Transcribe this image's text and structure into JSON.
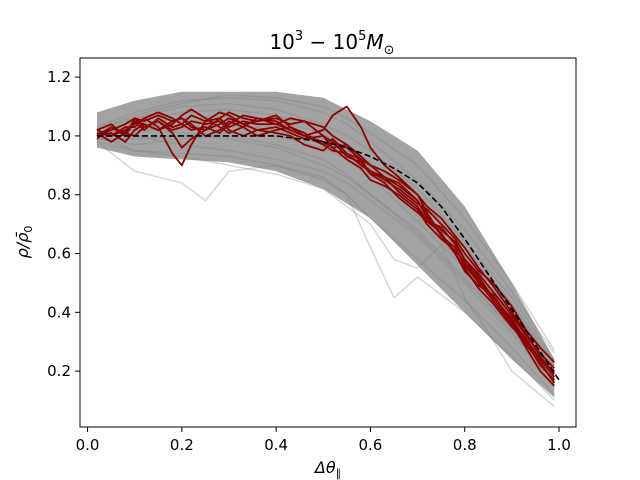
{
  "chart_data": {
    "type": "line",
    "title": "10^3 - 10^5 M_⊙",
    "title_parts": {
      "base1": "10",
      "exp1": "3",
      "minus": " − ",
      "base2": "10",
      "exp2": "5",
      "sym": "M",
      "sub": "⊙"
    },
    "xlabel": "Δθ",
    "xlabel_sub": "∥",
    "ylabel": "ρ/ρ̄",
    "ylabel_sub": "0",
    "xlim": [
      -0.016,
      1.036
    ],
    "ylim": [
      0.01,
      1.265
    ],
    "xticks": [
      0.0,
      0.2,
      0.4,
      0.6,
      0.8,
      1.0
    ],
    "xtick_labels": [
      "0.0",
      "0.2",
      "0.4",
      "0.6",
      "0.8",
      "1.0"
    ],
    "yticks": [
      0.2,
      0.4,
      0.6,
      0.8,
      1.0,
      1.2
    ],
    "ytick_labels": [
      "0.2",
      "0.4",
      "0.6",
      "0.8",
      "1.0",
      "1.2"
    ],
    "grid": false,
    "colors": {
      "background_band": "#808080",
      "highlight": "#8b0000",
      "mean": "#000000"
    },
    "mean_curve": {
      "name": "mean profile",
      "style": "dashed",
      "x": [
        0.02,
        0.1,
        0.2,
        0.3,
        0.4,
        0.45,
        0.5,
        0.55,
        0.6,
        0.65,
        0.7,
        0.75,
        0.8,
        0.85,
        0.9,
        0.95,
        1.0
      ],
      "y": [
        1.0,
        1.0,
        1.0,
        1.0,
        1.0,
        0.99,
        0.98,
        0.96,
        0.93,
        0.89,
        0.84,
        0.76,
        0.65,
        0.53,
        0.41,
        0.29,
        0.17
      ]
    },
    "background_band": {
      "name": "all profiles (grey)",
      "x": [
        0.02,
        0.1,
        0.2,
        0.3,
        0.4,
        0.5,
        0.6,
        0.7,
        0.8,
        0.9,
        0.99
      ],
      "y_low": [
        0.96,
        0.93,
        0.92,
        0.91,
        0.88,
        0.82,
        0.72,
        0.56,
        0.4,
        0.24,
        0.11
      ],
      "y_high": [
        1.08,
        1.12,
        1.15,
        1.15,
        1.15,
        1.13,
        1.05,
        0.95,
        0.76,
        0.5,
        0.24
      ]
    },
    "background_series": [
      {
        "name": "gray-01",
        "x": [
          0.02,
          0.1,
          0.2,
          0.3,
          0.4,
          0.5,
          0.55,
          0.6,
          0.7,
          0.8,
          0.9,
          0.99
        ],
        "y": [
          1.01,
          1.05,
          1.08,
          1.09,
          1.07,
          1.02,
          0.97,
          0.9,
          0.76,
          0.6,
          0.42,
          0.22
        ]
      },
      {
        "name": "gray-02",
        "x": [
          0.02,
          0.1,
          0.2,
          0.3,
          0.4,
          0.5,
          0.55,
          0.6,
          0.7,
          0.8,
          0.9,
          0.99
        ],
        "y": [
          0.99,
          0.97,
          0.99,
          1.0,
          0.97,
          0.92,
          0.87,
          0.8,
          0.68,
          0.52,
          0.34,
          0.16
        ]
      },
      {
        "name": "gray-03",
        "x": [
          0.02,
          0.1,
          0.2,
          0.3,
          0.4,
          0.5,
          0.55,
          0.6,
          0.7,
          0.8,
          0.9,
          0.99
        ],
        "y": [
          1.03,
          1.08,
          1.12,
          1.13,
          1.12,
          1.08,
          1.04,
          0.98,
          0.85,
          0.68,
          0.47,
          0.26
        ]
      },
      {
        "name": "gray-04",
        "x": [
          0.02,
          0.1,
          0.2,
          0.3,
          0.4,
          0.5,
          0.55,
          0.6,
          0.7,
          0.8,
          0.9,
          0.99
        ],
        "y": [
          1.0,
          1.02,
          1.03,
          1.04,
          1.02,
          0.98,
          0.94,
          0.88,
          0.73,
          0.56,
          0.38,
          0.19
        ]
      },
      {
        "name": "gray-05",
        "x": [
          0.02,
          0.1,
          0.2,
          0.3,
          0.4,
          0.5,
          0.55,
          0.6,
          0.7,
          0.8,
          0.9,
          0.99
        ],
        "y": [
          0.98,
          0.95,
          0.94,
          0.93,
          0.9,
          0.85,
          0.8,
          0.72,
          0.58,
          0.44,
          0.28,
          0.12
        ]
      },
      {
        "name": "gray-06",
        "x": [
          0.02,
          0.1,
          0.2,
          0.3,
          0.4,
          0.5,
          0.55,
          0.6,
          0.7,
          0.8,
          0.9,
          0.99
        ],
        "y": [
          1.02,
          1.06,
          1.1,
          1.11,
          1.09,
          1.04,
          1.0,
          0.95,
          0.82,
          0.64,
          0.45,
          0.24
        ]
      },
      {
        "name": "gray-07",
        "x": [
          0.02,
          0.1,
          0.2,
          0.3,
          0.4,
          0.5,
          0.55,
          0.6,
          0.7,
          0.8,
          0.9,
          0.99
        ],
        "y": [
          1.0,
          1.0,
          0.97,
          0.95,
          0.92,
          0.88,
          0.84,
          0.78,
          0.66,
          0.5,
          0.33,
          0.15
        ]
      },
      {
        "name": "gray-08",
        "x": [
          0.02,
          0.1,
          0.2,
          0.3,
          0.4,
          0.5,
          0.55,
          0.6,
          0.7,
          0.8,
          0.9,
          0.99
        ],
        "y": [
          1.01,
          1.04,
          1.06,
          1.07,
          1.05,
          1.01,
          0.96,
          0.89,
          0.75,
          0.58,
          0.4,
          0.21
        ]
      },
      {
        "name": "gray-09",
        "x": [
          0.02,
          0.1,
          0.2,
          0.3,
          0.4,
          0.5,
          0.55,
          0.6,
          0.7,
          0.8,
          0.9,
          0.99
        ],
        "y": [
          1.02,
          1.07,
          1.11,
          1.14,
          1.13,
          1.1,
          1.06,
          1.01,
          0.9,
          0.72,
          0.5,
          0.27
        ]
      },
      {
        "name": "gray-10",
        "x": [
          0.02,
          0.1,
          0.2,
          0.3,
          0.4,
          0.5,
          0.55,
          0.6,
          0.7,
          0.8,
          0.9,
          0.99
        ],
        "y": [
          0.99,
          0.99,
          1.0,
          1.01,
          1.0,
          0.96,
          0.92,
          0.86,
          0.71,
          0.55,
          0.37,
          0.18
        ]
      },
      {
        "name": "gray-11",
        "x": [
          0.02,
          0.1,
          0.2,
          0.3,
          0.4,
          0.5,
          0.55,
          0.6,
          0.7,
          0.8,
          0.9,
          0.99
        ],
        "y": [
          1.0,
          1.03,
          1.05,
          1.05,
          1.03,
          0.99,
          0.95,
          0.91,
          0.79,
          0.62,
          0.43,
          0.23
        ]
      },
      {
        "name": "gray-12",
        "x": [
          0.02,
          0.1,
          0.2,
          0.3,
          0.4,
          0.5,
          0.55,
          0.6,
          0.7,
          0.8,
          0.9,
          0.99
        ],
        "y": [
          1.01,
          1.02,
          1.01,
          0.99,
          0.96,
          0.9,
          0.86,
          0.8,
          0.67,
          0.51,
          0.35,
          0.17
        ]
      },
      {
        "name": "gray-outlier-1",
        "x": [
          0.02,
          0.1,
          0.2,
          0.25,
          0.3,
          0.4,
          0.5,
          0.55,
          0.6,
          0.65,
          0.7,
          0.8,
          0.9,
          0.99
        ],
        "y": [
          0.98,
          0.88,
          0.84,
          0.78,
          0.88,
          0.9,
          0.86,
          0.8,
          0.62,
          0.45,
          0.52,
          0.4,
          0.25,
          0.1
        ]
      },
      {
        "name": "gray-outlier-2",
        "x": [
          0.02,
          0.1,
          0.2,
          0.3,
          0.4,
          0.5,
          0.55,
          0.6,
          0.65,
          0.7,
          0.75,
          0.8,
          0.85,
          0.9,
          0.99
        ],
        "y": [
          1.0,
          0.95,
          0.93,
          0.9,
          0.87,
          0.82,
          0.76,
          0.7,
          0.58,
          0.55,
          0.63,
          0.45,
          0.33,
          0.2,
          0.08
        ]
      }
    ],
    "highlight_series": [
      {
        "name": "red-01",
        "x": [
          0.02,
          0.05,
          0.08,
          0.1,
          0.12,
          0.15,
          0.18,
          0.2,
          0.22,
          0.25,
          0.28,
          0.3,
          0.33,
          0.36,
          0.4,
          0.43,
          0.46,
          0.5,
          0.52,
          0.55,
          0.58,
          0.6,
          0.63,
          0.66,
          0.7,
          0.72,
          0.75,
          0.78,
          0.8,
          0.83,
          0.86,
          0.9,
          0.93,
          0.96,
          0.99
        ],
        "y": [
          1.0,
          1.03,
          1.0,
          1.05,
          1.02,
          1.06,
          1.03,
          1.04,
          1.07,
          1.05,
          1.06,
          1.03,
          1.05,
          1.04,
          1.04,
          1.02,
          1.0,
          0.98,
          0.96,
          0.97,
          0.93,
          0.9,
          0.88,
          0.85,
          0.8,
          0.76,
          0.72,
          0.66,
          0.62,
          0.55,
          0.49,
          0.4,
          0.33,
          0.25,
          0.19
        ]
      },
      {
        "name": "red-02",
        "x": [
          0.02,
          0.05,
          0.08,
          0.1,
          0.12,
          0.15,
          0.18,
          0.2,
          0.22,
          0.25,
          0.28,
          0.3,
          0.33,
          0.36,
          0.4,
          0.43,
          0.46,
          0.5,
          0.52,
          0.55,
          0.58,
          0.6,
          0.63,
          0.66,
          0.7,
          0.72,
          0.75,
          0.78,
          0.8,
          0.83,
          0.86,
          0.9,
          0.93,
          0.96,
          0.99
        ],
        "y": [
          1.02,
          1.04,
          1.0,
          1.06,
          1.03,
          1.05,
          1.01,
          0.96,
          0.99,
          1.02,
          1.06,
          1.08,
          1.06,
          1.05,
          1.07,
          1.03,
          1.01,
          0.97,
          0.99,
          0.94,
          0.92,
          0.9,
          0.86,
          0.83,
          0.78,
          0.72,
          0.68,
          0.64,
          0.58,
          0.52,
          0.45,
          0.38,
          0.3,
          0.24,
          0.2
        ]
      },
      {
        "name": "red-03",
        "x": [
          0.02,
          0.05,
          0.08,
          0.1,
          0.12,
          0.15,
          0.18,
          0.2,
          0.22,
          0.25,
          0.28,
          0.3,
          0.33,
          0.36,
          0.4,
          0.43,
          0.46,
          0.5,
          0.52,
          0.55,
          0.58,
          0.6,
          0.63,
          0.66,
          0.7,
          0.72,
          0.75,
          0.78,
          0.8,
          0.83,
          0.86,
          0.9,
          0.93,
          0.96,
          0.99
        ],
        "y": [
          1.01,
          1.0,
          1.02,
          1.04,
          1.06,
          1.03,
          0.94,
          0.9,
          0.97,
          1.05,
          1.08,
          1.07,
          1.04,
          1.05,
          1.06,
          1.04,
          1.05,
          1.0,
          0.98,
          0.93,
          0.91,
          0.88,
          0.85,
          0.82,
          0.77,
          0.75,
          0.7,
          0.65,
          0.6,
          0.54,
          0.5,
          0.42,
          0.34,
          0.28,
          0.23
        ]
      },
      {
        "name": "red-04",
        "x": [
          0.02,
          0.05,
          0.08,
          0.1,
          0.12,
          0.15,
          0.18,
          0.2,
          0.22,
          0.25,
          0.28,
          0.3,
          0.33,
          0.36,
          0.4,
          0.43,
          0.46,
          0.5,
          0.52,
          0.55,
          0.58,
          0.6,
          0.63,
          0.66,
          0.7,
          0.72,
          0.75,
          0.78,
          0.8,
          0.83,
          0.86,
          0.9,
          0.93,
          0.96,
          0.99
        ],
        "y": [
          1.0,
          1.02,
          1.04,
          1.06,
          1.05,
          1.07,
          1.05,
          1.06,
          1.04,
          1.0,
          1.02,
          1.05,
          1.03,
          1.0,
          1.02,
          1.03,
          1.0,
          1.02,
          1.07,
          1.1,
          1.03,
          0.96,
          0.9,
          0.86,
          0.8,
          0.74,
          0.66,
          0.6,
          0.55,
          0.48,
          0.43,
          0.35,
          0.3,
          0.22,
          0.17
        ]
      },
      {
        "name": "red-05",
        "x": [
          0.02,
          0.05,
          0.08,
          0.1,
          0.12,
          0.15,
          0.18,
          0.2,
          0.22,
          0.25,
          0.28,
          0.3,
          0.33,
          0.36,
          0.4,
          0.43,
          0.46,
          0.5,
          0.52,
          0.55,
          0.58,
          0.6,
          0.63,
          0.66,
          0.7,
          0.72,
          0.75,
          0.78,
          0.8,
          0.83,
          0.86,
          0.9,
          0.93,
          0.96,
          0.99
        ],
        "y": [
          1.0,
          1.01,
          0.98,
          1.02,
          1.04,
          1.02,
          1.05,
          1.06,
          1.03,
          1.02,
          1.04,
          1.06,
          1.04,
          1.02,
          1.01,
          1.0,
          0.97,
          0.95,
          0.98,
          0.96,
          0.92,
          0.87,
          0.86,
          0.84,
          0.78,
          0.73,
          0.66,
          0.62,
          0.56,
          0.5,
          0.44,
          0.36,
          0.28,
          0.2,
          0.15
        ]
      },
      {
        "name": "red-06",
        "x": [
          0.02,
          0.05,
          0.08,
          0.1,
          0.12,
          0.15,
          0.18,
          0.2,
          0.22,
          0.25,
          0.28,
          0.3,
          0.33,
          0.36,
          0.4,
          0.43,
          0.46,
          0.5,
          0.52,
          0.55,
          0.58,
          0.6,
          0.63,
          0.66,
          0.7,
          0.72,
          0.75,
          0.78,
          0.8,
          0.83,
          0.86,
          0.9,
          0.93,
          0.96,
          0.99
        ],
        "y": [
          1.02,
          1.0,
          1.03,
          1.03,
          1.06,
          1.08,
          1.06,
          1.04,
          1.02,
          1.03,
          1.01,
          1.04,
          1.07,
          1.06,
          1.05,
          1.02,
          1.0,
          0.97,
          0.95,
          0.94,
          0.9,
          0.88,
          0.86,
          0.81,
          0.76,
          0.71,
          0.69,
          0.63,
          0.58,
          0.53,
          0.47,
          0.39,
          0.32,
          0.26,
          0.21
        ]
      },
      {
        "name": "red-07",
        "x": [
          0.02,
          0.05,
          0.08,
          0.1,
          0.12,
          0.15,
          0.18,
          0.2,
          0.22,
          0.25,
          0.28,
          0.3,
          0.33,
          0.36,
          0.4,
          0.43,
          0.46,
          0.5,
          0.52,
          0.55,
          0.58,
          0.6,
          0.63,
          0.66,
          0.7,
          0.72,
          0.75,
          0.78,
          0.8,
          0.83,
          0.86,
          0.9,
          0.93,
          0.96,
          0.99
        ],
        "y": [
          1.01,
          0.98,
          1.01,
          1.05,
          1.04,
          1.02,
          1.04,
          1.07,
          1.09,
          1.06,
          1.03,
          1.01,
          1.03,
          1.06,
          1.04,
          1.06,
          1.05,
          1.03,
          1.0,
          0.97,
          0.91,
          0.87,
          0.84,
          0.79,
          0.74,
          0.71,
          0.67,
          0.6,
          0.54,
          0.49,
          0.46,
          0.37,
          0.31,
          0.24,
          0.18
        ]
      },
      {
        "name": "red-08",
        "x": [
          0.02,
          0.05,
          0.08,
          0.1,
          0.12,
          0.15,
          0.18,
          0.2,
          0.22,
          0.25,
          0.28,
          0.3,
          0.33,
          0.36,
          0.4,
          0.43,
          0.46,
          0.5,
          0.52,
          0.55,
          0.58,
          0.6,
          0.63,
          0.66,
          0.7,
          0.72,
          0.75,
          0.78,
          0.8,
          0.83,
          0.86,
          0.9,
          0.93,
          0.96,
          0.99
        ],
        "y": [
          0.99,
          1.03,
          1.01,
          1.0,
          1.03,
          1.05,
          1.02,
          1.03,
          1.05,
          1.04,
          1.05,
          1.02,
          1.0,
          1.02,
          1.03,
          1.01,
          0.99,
          1.0,
          0.96,
          0.92,
          0.89,
          0.85,
          0.83,
          0.8,
          0.75,
          0.7,
          0.65,
          0.61,
          0.57,
          0.51,
          0.44,
          0.37,
          0.29,
          0.23,
          0.16
        ]
      }
    ]
  }
}
